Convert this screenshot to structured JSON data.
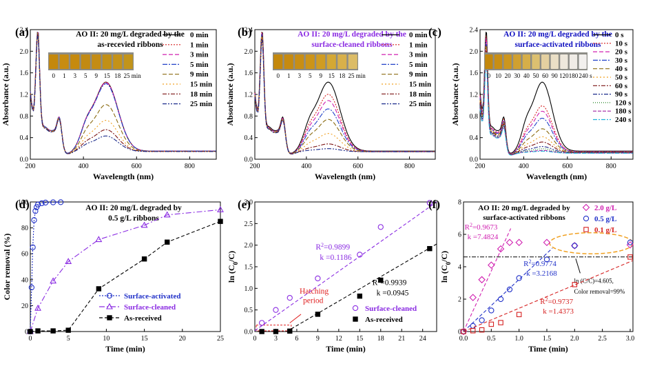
{
  "chart_data": [
    {
      "panel": "(a)",
      "type": "line",
      "title_lines": [
        "AO II: 20 mg/L degraded by the",
        "as-recevied ribbons"
      ],
      "title_color": "#000000",
      "xlabel": "Wavelength (nm)",
      "ylabel": "Absorbance (a.u.)",
      "xlim": [
        200,
        900
      ],
      "ylim": [
        0,
        2.4
      ],
      "xticks": [
        200,
        400,
        600,
        800
      ],
      "yticks": [
        0.0,
        0.4,
        0.8,
        1.2,
        1.6,
        2.0,
        2.4
      ],
      "inset_labels": [
        "0",
        "1",
        "3",
        "5",
        "9",
        "15",
        "18",
        "25 min"
      ],
      "inset_tints": [
        "#c4880c",
        "#c88c10",
        "#c68a0e",
        "#c28a12",
        "#c48c14",
        "#c29016",
        "#c49218",
        "#c2941a"
      ],
      "series": [
        {
          "name": "0 min",
          "color": "#000000",
          "dash": "",
          "peak": 1.33,
          "base": 1.0
        },
        {
          "name": "1 min",
          "color": "#d62020",
          "dash": "2,2",
          "peak": 1.33,
          "base": 1.0
        },
        {
          "name": "3 min",
          "color": "#d01fb0",
          "dash": "6,3",
          "peak": 1.32,
          "base": 1.0
        },
        {
          "name": "5 min",
          "color": "#2040c8",
          "dash": "7,2,2,2",
          "peak": 1.3,
          "base": 1.0
        },
        {
          "name": "9 min",
          "color": "#8a6a10",
          "dash": "6,3",
          "peak": 0.9,
          "base": 0.98
        },
        {
          "name": "15 min",
          "color": "#f0a020",
          "dash": "2,3",
          "peak": 0.6,
          "base": 0.96
        },
        {
          "name": "18 min",
          "color": "#7a1010",
          "dash": "6,2,2,2",
          "peak": 0.42,
          "base": 0.96
        },
        {
          "name": "25 min",
          "color": "#1a2a8a",
          "dash": "6,2,2,2,2,2",
          "peak": 0.3,
          "base": 0.95
        }
      ]
    },
    {
      "panel": "(b)",
      "type": "line",
      "title_lines": [
        "AO II: 20 mg/L degraded by the",
        "surface-cleaned ribbons"
      ],
      "title_color": "#8a2be2",
      "xlabel": "Wavelength (nm)",
      "ylabel": "Absorbance (a.u.)",
      "xlim": [
        200,
        900
      ],
      "ylim": [
        0,
        2.4
      ],
      "xticks": [
        200,
        400,
        600,
        800
      ],
      "yticks": [
        0.0,
        0.4,
        0.8,
        1.2,
        1.6,
        2.0,
        2.4
      ],
      "inset_labels": [
        "0",
        "1",
        "3",
        "5",
        "9",
        "15",
        "18",
        "25 min"
      ],
      "inset_tints": [
        "#c4880c",
        "#c68a10",
        "#c88e14",
        "#cc9418",
        "#d09c22",
        "#d4a834",
        "#d8b04a",
        "#dcbc66"
      ],
      "series": [
        {
          "name": "0 min",
          "color": "#000000",
          "dash": "",
          "peak": 1.33,
          "base": 1.0
        },
        {
          "name": "1 min",
          "color": "#d62020",
          "dash": "2,2",
          "peak": 1.1,
          "base": 0.98
        },
        {
          "name": "3 min",
          "color": "#d01fb0",
          "dash": "6,3",
          "peak": 0.98,
          "base": 0.97
        },
        {
          "name": "5 min",
          "color": "#2040c8",
          "dash": "7,2,2,2",
          "peak": 0.82,
          "base": 0.96
        },
        {
          "name": "9 min",
          "color": "#8a6a10",
          "dash": "6,3",
          "peak": 0.62,
          "base": 0.95
        },
        {
          "name": "15 min",
          "color": "#f0a020",
          "dash": "2,3",
          "peak": 0.35,
          "base": 0.94
        },
        {
          "name": "18 min",
          "color": "#7a1010",
          "dash": "6,2,2,2",
          "peak": 0.15,
          "base": 0.93
        },
        {
          "name": "25 min",
          "color": "#1a2a8a",
          "dash": "6,2,2,2,2,2",
          "peak": 0.06,
          "base": 0.92
        }
      ]
    },
    {
      "panel": "(c)",
      "type": "line",
      "title_lines": [
        "AO II: 20 mg/L degraded by the",
        "surface-activated ribbons"
      ],
      "title_color": "#1010c0",
      "xlabel": "Wavelength (nm)",
      "ylabel": "Absorbance (a.u.)",
      "xlim": [
        200,
        900
      ],
      "ylim": [
        0,
        2.4
      ],
      "xticks": [
        200,
        400,
        600,
        800
      ],
      "yticks": [
        0.0,
        0.4,
        0.8,
        1.2,
        1.6,
        2.0,
        2.4
      ],
      "inset_labels": [
        "0",
        "10",
        "20",
        "30",
        "40",
        "50",
        "60",
        "90",
        "120",
        "180",
        "240 s"
      ],
      "inset_tints": [
        "#c4880c",
        "#c88e14",
        "#cc961e",
        "#d0a030",
        "#d6ae48",
        "#dcc070",
        "#e4d0a0",
        "#eadfc6",
        "#eee8dc",
        "#f0ece6",
        "#f2f0ee"
      ],
      "series": [
        {
          "name": "0 s",
          "color": "#000000",
          "dash": "",
          "peak": 1.33,
          "base": 1.0
        },
        {
          "name": "10 s",
          "color": "#d62020",
          "dash": "2,2",
          "peak": 0.88,
          "base": 0.95
        },
        {
          "name": "20 s",
          "color": "#d01fb0",
          "dash": "6,3",
          "peak": 0.78,
          "base": 0.93
        },
        {
          "name": "30 s",
          "color": "#2040c8",
          "dash": "7,2,2,2",
          "peak": 0.65,
          "base": 0.9
        },
        {
          "name": "40 s",
          "color": "#8a6a10",
          "dash": "6,3",
          "peak": 0.45,
          "base": 0.88
        },
        {
          "name": "50 s",
          "color": "#f0a020",
          "dash": "2,3",
          "peak": 0.3,
          "base": 0.86
        },
        {
          "name": "60 s",
          "color": "#7a1010",
          "dash": "6,2,2,2",
          "peak": 0.2,
          "base": 0.84
        },
        {
          "name": "90 s",
          "color": "#1a2a8a",
          "dash": "6,2,2,2,2,2",
          "peak": 0.12,
          "base": 0.8
        },
        {
          "name": "120 s",
          "color": "#208020",
          "dash": "1,2",
          "peak": 0.08,
          "base": 0.78
        },
        {
          "name": "180 s",
          "color": "#a020a0",
          "dash": "5,2",
          "peak": 0.05,
          "base": 0.76
        },
        {
          "name": "240 s",
          "color": "#20b0d8",
          "dash": "6,2,2,2",
          "peak": 0.04,
          "base": 0.74
        }
      ]
    },
    {
      "panel": "(d)",
      "type": "line",
      "title_lines": [
        "AO II: 20 mg/L degraded by",
        "0.5 g/L ribbons"
      ],
      "title_color": "#000000",
      "xlabel": "Time (min)",
      "ylabel": "Color removal (%)",
      "xlim": [
        0,
        25
      ],
      "ylim": [
        0,
        100
      ],
      "xticks": [
        0,
        5,
        10,
        15,
        20,
        25
      ],
      "yticks": [
        0,
        20,
        40,
        60,
        80,
        100
      ],
      "series": [
        {
          "name": "Surface-activated",
          "color": "#2030c8",
          "marker": "circle",
          "dash": "2,2",
          "x": [
            0,
            0.17,
            0.33,
            0.5,
            0.67,
            0.83,
            1,
            1.5,
            2,
            3,
            4
          ],
          "y": [
            0,
            34,
            65,
            86,
            93,
            96,
            98,
            99,
            99.5,
            99.7,
            99.8
          ]
        },
        {
          "name": "Surface-cleaned",
          "color": "#8a2be2",
          "marker": "triangle",
          "dash": "8,3,2,3",
          "x": [
            0,
            1,
            3,
            5,
            9,
            15,
            18,
            25
          ],
          "y": [
            0,
            18,
            39,
            54,
            71,
            82,
            90,
            94
          ]
        },
        {
          "name": "As-received",
          "color": "#000000",
          "marker": "square",
          "dash": "5,3",
          "x": [
            0,
            1,
            3,
            5,
            9,
            15,
            18,
            25
          ],
          "y": [
            0,
            0.5,
            0.5,
            1,
            33,
            56,
            69,
            85
          ]
        }
      ]
    },
    {
      "panel": "(e)",
      "type": "scatter",
      "xlabel": "Time (min)",
      "ylabel": "ln (C0/C)",
      "xlim": [
        0,
        26
      ],
      "ylim": [
        0,
        3.0
      ],
      "xticks": [
        0,
        3,
        6,
        9,
        12,
        15,
        18,
        21,
        24
      ],
      "yticks": [
        0.0,
        0.5,
        1.0,
        1.5,
        2.0,
        2.5,
        3.0
      ],
      "annotation": [
        "Hatching",
        "period"
      ],
      "series": [
        {
          "name": "Surface-cleaned",
          "color": "#8a2be2",
          "marker": "circle",
          "x": [
            1,
            3,
            5,
            9,
            15,
            18,
            25
          ],
          "y": [
            0.2,
            0.5,
            0.78,
            1.23,
            1.78,
            2.42,
            2.98
          ],
          "fit": {
            "k": 0.1186,
            "b": 0.02
          },
          "r2": "0.9899",
          "k_label": "0.1186"
        },
        {
          "name": "As-received",
          "color": "#000000",
          "marker": "square",
          "x": [
            1,
            3,
            5,
            9,
            15,
            18,
            25
          ],
          "y": [
            0.0,
            0.0,
            0.01,
            0.4,
            0.82,
            1.19,
            1.92
          ],
          "fit": {
            "k": 0.0945,
            "b": -0.43
          },
          "r2": "0.9939",
          "k_label": "0.0945"
        }
      ]
    },
    {
      "panel": "(f)",
      "type": "scatter",
      "title_lines": [
        "AO II: 20 mg/L degraded by",
        "surface-activated ribbons"
      ],
      "title_color": "#000000",
      "xlabel": "Time (min)",
      "ylabel": "ln (C0/C)",
      "xlim": [
        0,
        3.05
      ],
      "ylim": [
        0,
        8
      ],
      "xticks": [
        0.0,
        0.5,
        1.0,
        1.5,
        2.0,
        2.5,
        3.0
      ],
      "yticks": [
        0,
        2,
        4,
        6,
        8
      ],
      "threshold": 4.605,
      "threshold_note": [
        "ln (C0/C)=4.605,",
        "Color removal=99%"
      ],
      "series": [
        {
          "name": "2.0 g/L",
          "color": "#d01fb0",
          "marker": "diamond",
          "x": [
            0,
            0.17,
            0.33,
            0.5,
            0.67,
            0.83,
            1.0,
            1.5,
            2.0,
            3.0
          ],
          "y": [
            0,
            2.1,
            3.2,
            4.1,
            5.1,
            5.5,
            5.5,
            5.5,
            5.3,
            5.35
          ],
          "fit": {
            "k": 7.4824,
            "b": 0,
            "xmax": 0.85
          },
          "r2": "0.9673",
          "k_label": "7.4824"
        },
        {
          "name": "0.5 g/L",
          "color": "#2030c8",
          "marker": "circle",
          "x": [
            0,
            0.17,
            0.33,
            0.5,
            0.67,
            0.83,
            1.0,
            1.5,
            2.0,
            3.0
          ],
          "y": [
            0,
            0.35,
            0.7,
            1.3,
            2.0,
            2.6,
            3.3,
            4.45,
            5.3,
            5.5
          ],
          "fit": {
            "k": 3.2168,
            "b": 0,
            "xmax": 1.6
          },
          "r2": "0.9774",
          "k_label": "3.2168"
        },
        {
          "name": "0.1 g/L",
          "color": "#d62020",
          "marker": "square",
          "x": [
            0,
            0.17,
            0.33,
            0.5,
            0.67,
            1.0,
            2.0,
            3.0
          ],
          "y": [
            0,
            0.05,
            0.1,
            0.45,
            0.55,
            1.05,
            2.9,
            4.6
          ],
          "fit": {
            "k": 1.4373,
            "b": 0,
            "xmax": 3.05
          },
          "r2": "0.9737",
          "k_label": "1.4373"
        }
      ]
    }
  ]
}
